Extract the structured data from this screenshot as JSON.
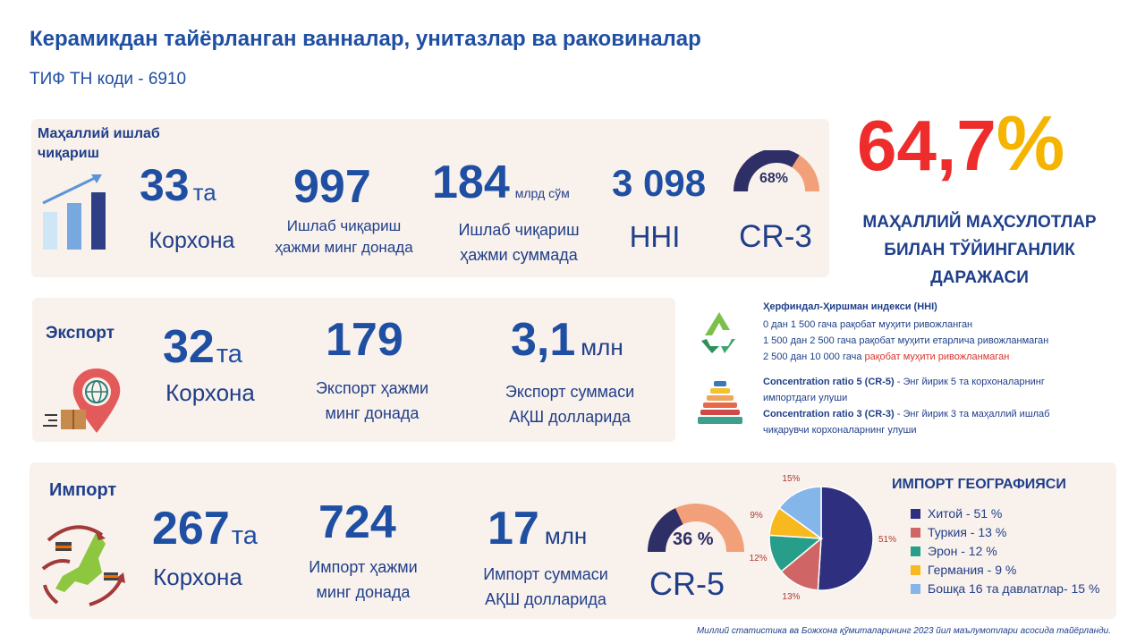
{
  "header": {
    "title": "Керамикдан тайёрланган ванналар, унитазлар ва раковиналар",
    "subtitle": "ТИФ ТН коди - 6910"
  },
  "local_production": {
    "label_line1": "Маҳаллий ишлаб",
    "label_line2": "чиқариш",
    "companies_value": "33",
    "companies_unit": "та",
    "companies_caption": "Корхона",
    "volume_value": "997",
    "volume_caption_line1": "Ишлаб чиқариш",
    "volume_caption_line2": "ҳажми минг донада",
    "sum_value": "184",
    "sum_unit": "млрд сўм",
    "sum_caption_line1": "Ишлаб чиқариш",
    "sum_caption_line2": "ҳажми суммада",
    "hhi_value": "3 098",
    "hhi_caption": "HHI",
    "cr3_value": 68,
    "cr3_label": "68%",
    "cr3_caption": "CR-3"
  },
  "saturation": {
    "value": "64,7",
    "percent_sign": "%",
    "line1": "МАҲАЛЛИЙ МАҲСУЛОТЛАР",
    "line2": "БИЛАН ТЎЙИНГАНЛИК",
    "line3": "ДАРАЖАСИ"
  },
  "export": {
    "label": "Экспорт",
    "companies_value": "32",
    "companies_unit": "та",
    "companies_caption": "Корхона",
    "volume_value": "179",
    "volume_caption_line1": "Экспорт ҳажми",
    "volume_caption_line2": "минг донада",
    "sum_value": "3,1",
    "sum_unit": "млн",
    "sum_caption_line1": "Экспорт суммаси",
    "sum_caption_line2": "АҚШ долларида"
  },
  "info": {
    "hhi_title": "Ҳерфиндал-Ҳиршман индекси (HHI)",
    "hhi_line1": "0 дан 1 500 гача рақобат муҳити ривожланган",
    "hhi_line2": "1 500 дан 2 500 гача рақобат муҳити етарлича ривожланмаган",
    "hhi_line3_prefix": "2 500 дан 10 000 гача",
    "hhi_line3_red": " рақобат муҳити ривожланмаган",
    "cr5_bold": "Concentration ratio 5 (CR-5)",
    "cr5_text": " - Энг йирик 5 та корхоналарнинг",
    "cr5_text2": "импортдаги улуши",
    "cr3_bold": "Concentration ratio 3 (CR-3)",
    "cr3_text": " - Энг йирик 3 та маҳаллий ишлаб",
    "cr3_text2": "чиқарувчи корхоналарнинг улуши",
    "colors": {
      "red": "#d8342c"
    }
  },
  "import": {
    "label": "Импорт",
    "companies_value": "267",
    "companies_unit": "та",
    "companies_caption": "Корхона",
    "volume_value": "724",
    "volume_caption_line1": "Импорт ҳажми",
    "volume_caption_line2": "минг донада",
    "sum_value": "17",
    "sum_unit": "млн",
    "sum_caption_line1": "Импорт суммаси",
    "sum_caption_line2": "АҚШ долларида",
    "cr5_value": 36,
    "cr5_label": "36 %",
    "cr5_caption": "CR-5"
  },
  "chart_data": {
    "type": "pie",
    "title": "ИМПОРТ ГЕОГРАФИЯСИ",
    "slices": [
      {
        "name": "Хитой  - 51 %",
        "value": 51,
        "label": "51%",
        "color": "#2e2f7f"
      },
      {
        "name": "Туркия - 13 %",
        "value": 13,
        "label": "13%",
        "color": "#d06565"
      },
      {
        "name": "Эрон - 12 %",
        "value": 12,
        "label": "12%",
        "color": "#279e8a"
      },
      {
        "name": "Германия - 9 %",
        "value": 9,
        "label": "9%",
        "color": "#f8b91f"
      },
      {
        "name": "Бошқа 16 та давлатлар-  15 %",
        "value": 15,
        "label": "15%",
        "color": "#85b6ea"
      }
    ],
    "legend_position": "right"
  },
  "footer": {
    "source": "Миллий статистика ва Божхона қўмиталарининг 2023 йил маълумотлари асосида тайёрланди."
  }
}
